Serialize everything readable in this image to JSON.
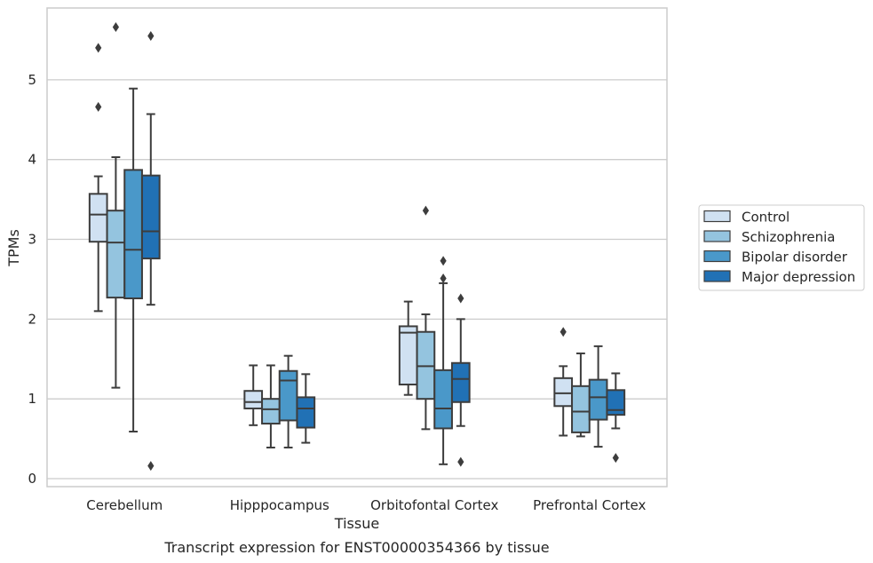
{
  "chart_data": {
    "type": "box",
    "xlabel": "Tissue",
    "ylabel": "TPMs",
    "caption": "Transcript expression for ENST00000354366 by tissue",
    "ylim": [
      -0.1,
      5.9
    ],
    "yticks": [
      0,
      1,
      2,
      3,
      4,
      5
    ],
    "grid": "horizontal",
    "legend_position": "center-right",
    "categories": [
      "Cerebellum",
      "Hipppocampus",
      "Orbitofontal Cortex",
      "Prefrontal Cortex"
    ],
    "series": [
      {
        "name": "Control",
        "color": "#d0e1f2",
        "boxes": [
          {
            "whislo": 2.1,
            "q1": 2.97,
            "med": 3.31,
            "q3": 3.57,
            "whishi": 3.79,
            "fliers": [
              4.66,
              5.4
            ]
          },
          {
            "whislo": 0.67,
            "q1": 0.88,
            "med": 0.96,
            "q3": 1.1,
            "whishi": 1.42,
            "fliers": []
          },
          {
            "whislo": 1.05,
            "q1": 1.18,
            "med": 1.83,
            "q3": 1.91,
            "whishi": 2.22,
            "fliers": []
          },
          {
            "whislo": 0.54,
            "q1": 0.91,
            "med": 1.07,
            "q3": 1.26,
            "whishi": 1.41,
            "fliers": [
              1.84
            ]
          }
        ]
      },
      {
        "name": "Schizophrenia",
        "color": "#94c4df",
        "boxes": [
          {
            "whislo": 1.14,
            "q1": 2.27,
            "med": 2.96,
            "q3": 3.36,
            "whishi": 4.03,
            "fliers": [
              5.66
            ]
          },
          {
            "whislo": 0.39,
            "q1": 0.69,
            "med": 0.87,
            "q3": 1.0,
            "whishi": 1.42,
            "fliers": []
          },
          {
            "whislo": 0.62,
            "q1": 1.0,
            "med": 1.41,
            "q3": 1.84,
            "whishi": 2.06,
            "fliers": [
              3.36
            ]
          },
          {
            "whislo": 0.53,
            "q1": 0.58,
            "med": 0.84,
            "q3": 1.16,
            "whishi": 1.57,
            "fliers": []
          }
        ]
      },
      {
        "name": "Bipolar disorder",
        "color": "#4a98c9",
        "boxes": [
          {
            "whislo": 0.59,
            "q1": 2.26,
            "med": 2.87,
            "q3": 3.87,
            "whishi": 4.89,
            "fliers": []
          },
          {
            "whislo": 0.39,
            "q1": 0.73,
            "med": 1.23,
            "q3": 1.35,
            "whishi": 1.54,
            "fliers": []
          },
          {
            "whislo": 0.18,
            "q1": 0.63,
            "med": 0.88,
            "q3": 1.36,
            "whishi": 2.45,
            "fliers": [
              2.51,
              2.73
            ]
          },
          {
            "whislo": 0.4,
            "q1": 0.74,
            "med": 1.02,
            "q3": 1.24,
            "whishi": 1.66,
            "fliers": []
          }
        ]
      },
      {
        "name": "Major depression",
        "color": "#2171b5",
        "boxes": [
          {
            "whislo": 2.18,
            "q1": 2.76,
            "med": 3.1,
            "q3": 3.8,
            "whishi": 4.57,
            "fliers": [
              0.16,
              5.55
            ]
          },
          {
            "whislo": 0.45,
            "q1": 0.64,
            "med": 0.88,
            "q3": 1.02,
            "whishi": 1.31,
            "fliers": []
          },
          {
            "whislo": 0.66,
            "q1": 0.96,
            "med": 1.25,
            "q3": 1.45,
            "whishi": 2.0,
            "fliers": [
              0.21,
              2.26
            ]
          },
          {
            "whislo": 0.63,
            "q1": 0.8,
            "med": 0.86,
            "q3": 1.11,
            "whishi": 1.32,
            "fliers": [
              0.26
            ]
          }
        ]
      }
    ]
  }
}
